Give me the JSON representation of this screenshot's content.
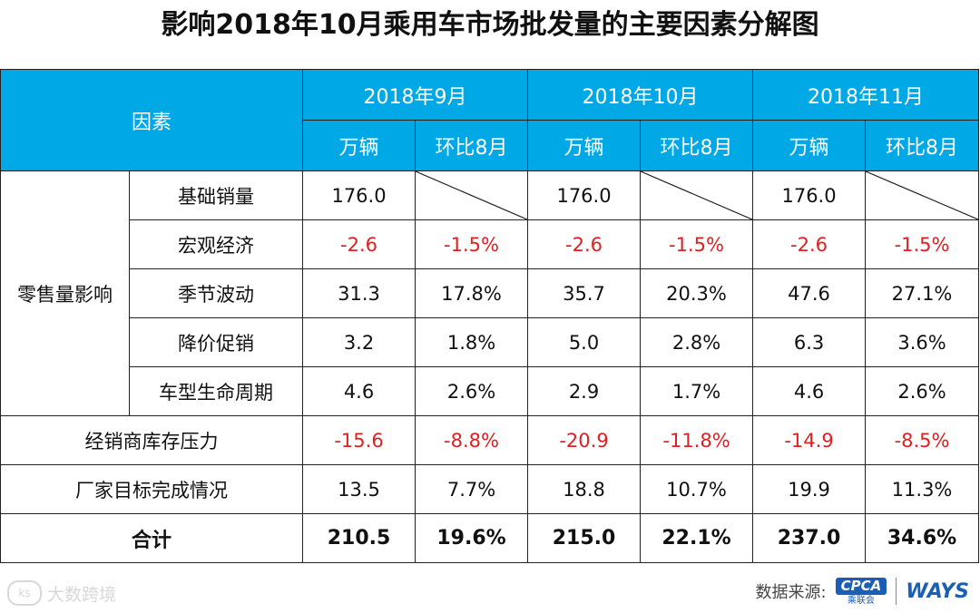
{
  "title": "影响2018年10月乘用车市场批发量的主要因素分解图",
  "header": {
    "factor_label": "因素",
    "months": [
      "2018年9月",
      "2018年10月",
      "2018年11月"
    ],
    "sub": [
      "万辆",
      "环比8月"
    ]
  },
  "groups": {
    "retail": "零售量影响"
  },
  "rows": [
    {
      "name": "基础销量",
      "v": [
        "176.0",
        "",
        "176.0",
        "",
        "176.0",
        ""
      ]
    },
    {
      "name": "宏观经济",
      "v": [
        "-2.6",
        "-1.5%",
        "-2.6",
        "-1.5%",
        "-2.6",
        "-1.5%"
      ]
    },
    {
      "name": "季节波动",
      "v": [
        "31.3",
        "17.8%",
        "35.7",
        "20.3%",
        "47.6",
        "27.1%"
      ]
    },
    {
      "name": "降价促销",
      "v": [
        "3.2",
        "1.8%",
        "5.0",
        "2.8%",
        "6.3",
        "3.6%"
      ]
    },
    {
      "name": "车型生命周期",
      "v": [
        "4.6",
        "2.6%",
        "2.9",
        "1.7%",
        "4.6",
        "2.6%"
      ]
    },
    {
      "name": "经销商库存压力",
      "v": [
        "-15.6",
        "-8.8%",
        "-20.9",
        "-11.8%",
        "-14.9",
        "-8.5%"
      ]
    },
    {
      "name": "厂家目标完成情况",
      "v": [
        "13.5",
        "7.7%",
        "18.8",
        "10.7%",
        "19.9",
        "11.3%"
      ]
    }
  ],
  "total": {
    "name": "合计",
    "v": [
      "210.5",
      "19.6%",
      "215.0",
      "22.1%",
      "237.0",
      "34.6%"
    ]
  },
  "footer": {
    "watermark": "大数跨境",
    "watermark_icon": "ks-logo-icon",
    "source_label": "数据来源:",
    "cpca": "CPCA",
    "cpca_sub": "乘联会",
    "ways": "WAYS"
  },
  "colors": {
    "header_bg": "#00a9e6",
    "negative": "#e02020"
  }
}
